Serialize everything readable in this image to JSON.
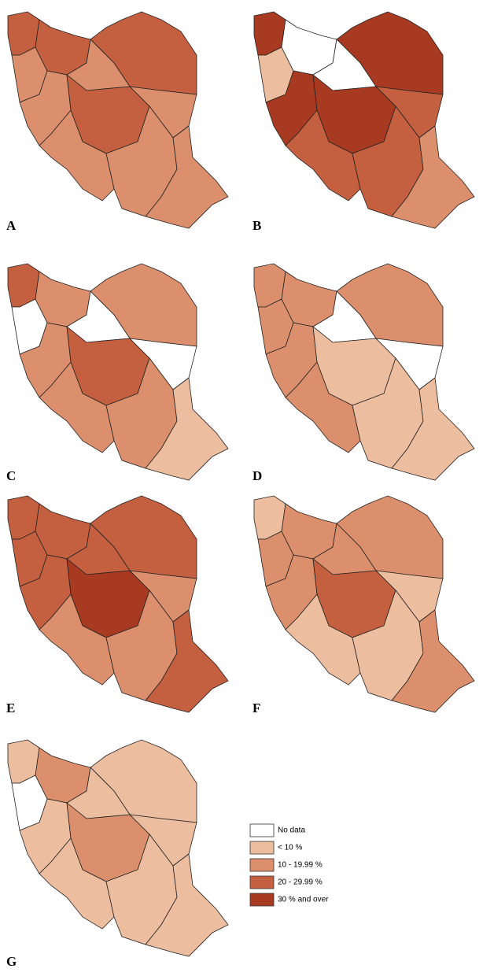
{
  "panels": [
    {
      "label": "A",
      "regions": [
        3,
        2,
        3,
        2,
        3,
        2,
        3,
        2,
        2,
        2,
        2
      ]
    },
    {
      "label": "B",
      "regions": [
        4,
        1,
        0,
        4,
        4,
        0,
        4,
        3,
        3,
        3,
        2
      ]
    },
    {
      "label": "C",
      "regions": [
        3,
        0,
        2,
        2,
        2,
        0,
        3,
        0,
        2,
        2,
        1
      ]
    },
    {
      "label": "D",
      "regions": [
        2,
        2,
        2,
        2,
        2,
        0,
        1,
        0,
        2,
        1,
        1
      ]
    },
    {
      "label": "E",
      "regions": [
        3,
        3,
        3,
        3,
        3,
        3,
        4,
        2,
        2,
        2,
        3
      ]
    },
    {
      "label": "F",
      "regions": [
        1,
        2,
        2,
        2,
        2,
        2,
        3,
        1,
        1,
        1,
        2
      ]
    },
    {
      "label": "G",
      "regions": [
        1,
        0,
        2,
        1,
        1,
        1,
        2,
        1,
        1,
        1,
        1
      ]
    }
  ],
  "legend": [
    {
      "label": "No data",
      "color": "#ffffff"
    },
    {
      "label": "< 10 %",
      "color": "#edbd9f"
    },
    {
      "label": "10 - 19.99 %",
      "color": "#db8f6c"
    },
    {
      "label": "20 - 29.99 %",
      "color": "#c4603f"
    },
    {
      "label": "30 % and over",
      "color": "#a83a22"
    }
  ]
}
